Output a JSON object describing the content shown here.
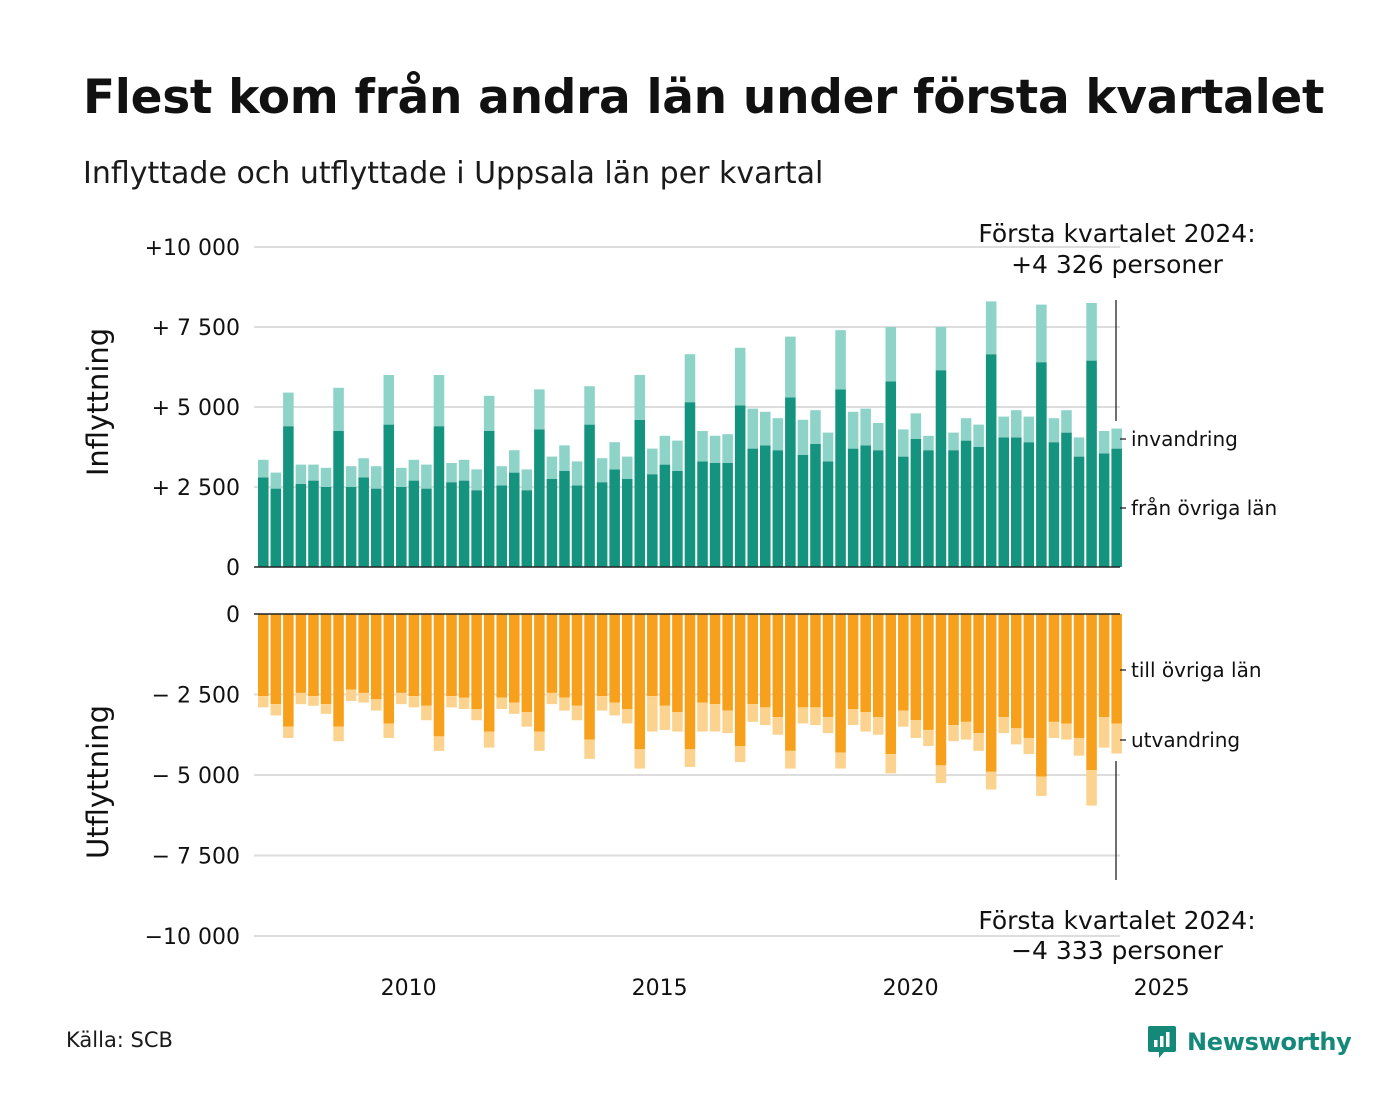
{
  "title": "Flest kom från andra län under första kvartalet",
  "subtitle": "Inflyttade och utflyttade i Uppsala län per kvartal",
  "source": "Källa: SCB",
  "brand": "Newsworthy",
  "annotation_top": [
    "Första kvartalet 2024:",
    "+4 326 personer"
  ],
  "annotation_bottom": [
    "Första kvartalet 2024:",
    "−4 333 personer"
  ],
  "colors": {
    "fran_ovriga_lan": "#14937f",
    "invandring": "#8dd3c8",
    "till_ovriga_lan": "#f6a01b",
    "utvandring": "#fcd38e",
    "grid": "#dddddd",
    "axis": "#222222",
    "brand": "#14897a"
  },
  "chart_data": [
    {
      "type": "bar",
      "stacked": true,
      "panel": "top",
      "ylabel": "Inflyttning",
      "ylim": [
        0,
        10000
      ],
      "yticks": [
        {
          "value": 10000,
          "label": "+10 000"
        },
        {
          "value": 7500,
          "label": "+ 7 500"
        },
        {
          "value": 5000,
          "label": "+ 5 000"
        },
        {
          "value": 2500,
          "label": "+ 2 500"
        },
        {
          "value": 0,
          "label": "0"
        }
      ],
      "x_start": "2007 Q1",
      "x_end": "2024 Q1",
      "xticks": [
        "2010",
        "2015",
        "2020",
        "2025"
      ],
      "grid": true,
      "legend_placement": "right (inline labels)",
      "series": [
        {
          "name": "från övriga län",
          "color_key": "fran_ovriga_lan",
          "values": [
            2800,
            2450,
            4400,
            2600,
            2700,
            2500,
            4250,
            2500,
            2800,
            2450,
            4450,
            2500,
            2700,
            2450,
            4400,
            2650,
            2700,
            2400,
            4250,
            2550,
            2950,
            2400,
            4300,
            2750,
            3000,
            2550,
            4450,
            2650,
            3050,
            2750,
            4600,
            2900,
            3200,
            3000,
            5150,
            3300,
            3250,
            3250,
            5050,
            3700,
            3800,
            3650,
            5300,
            3500,
            3850,
            3300,
            5550,
            3700,
            3800,
            3650,
            5800,
            3450,
            4000,
            3650,
            6150,
            3650,
            3950,
            3750,
            6650,
            4050,
            4050,
            3900,
            6400,
            3900,
            4200,
            3450,
            6450,
            3550,
            3700
          ]
        },
        {
          "name": "invandring",
          "color_key": "invandring",
          "values": [
            550,
            500,
            1050,
            600,
            500,
            600,
            1350,
            650,
            600,
            700,
            1550,
            600,
            650,
            750,
            1600,
            600,
            650,
            650,
            1100,
            600,
            700,
            650,
            1250,
            700,
            800,
            750,
            1200,
            750,
            850,
            700,
            1400,
            800,
            900,
            950,
            1500,
            950,
            850,
            900,
            1800,
            1250,
            1050,
            1000,
            1900,
            1100,
            1050,
            900,
            1850,
            1150,
            1150,
            850,
            1700,
            850,
            800,
            450,
            1350,
            550,
            700,
            700,
            1650,
            650,
            850,
            800,
            1800,
            750,
            700,
            600,
            1800,
            700,
            626
          ]
        }
      ]
    },
    {
      "type": "bar",
      "stacked": true,
      "panel": "bottom",
      "ylabel": "Utflyttning",
      "ylim": [
        -10000,
        0
      ],
      "yticks": [
        {
          "value": 0,
          "label": "0"
        },
        {
          "value": -2500,
          "label": "− 2 500"
        },
        {
          "value": -5000,
          "label": "− 5 000"
        },
        {
          "value": -7500,
          "label": "− 7 500"
        },
        {
          "value": -10000,
          "label": "−10 000"
        }
      ],
      "x_start": "2007 Q1",
      "x_end": "2024 Q1",
      "xticks": [
        "2010",
        "2015",
        "2020",
        "2025"
      ],
      "grid": true,
      "legend_placement": "right (inline labels)",
      "series": [
        {
          "name": "till övriga län",
          "color_key": "till_ovriga_lan",
          "values": [
            -2550,
            -2800,
            -3500,
            -2450,
            -2550,
            -2800,
            -3500,
            -2350,
            -2450,
            -2650,
            -3400,
            -2450,
            -2550,
            -2850,
            -3800,
            -2550,
            -2600,
            -2950,
            -3650,
            -2600,
            -2750,
            -3050,
            -3650,
            -2450,
            -2600,
            -2850,
            -3900,
            -2550,
            -2750,
            -2950,
            -4200,
            -2550,
            -2850,
            -3050,
            -4200,
            -2750,
            -2800,
            -3000,
            -4100,
            -2800,
            -2900,
            -3200,
            -4250,
            -2900,
            -2900,
            -3200,
            -4300,
            -2950,
            -3050,
            -3200,
            -4350,
            -3000,
            -3300,
            -3600,
            -4700,
            -3450,
            -3350,
            -3700,
            -4900,
            -3200,
            -3550,
            -3850,
            -5050,
            -3350,
            -3400,
            -3850,
            -4850,
            -3200,
            -3400
          ]
        },
        {
          "name": "utvandring",
          "color_key": "utvandring",
          "values": [
            -350,
            -350,
            -350,
            -350,
            -300,
            -300,
            -450,
            -350,
            -300,
            -350,
            -450,
            -350,
            -350,
            -450,
            -450,
            -350,
            -350,
            -350,
            -500,
            -350,
            -350,
            -450,
            -600,
            -350,
            -400,
            -450,
            -600,
            -450,
            -400,
            -450,
            -600,
            -1100,
            -750,
            -600,
            -550,
            -900,
            -850,
            -700,
            -500,
            -550,
            -550,
            -550,
            -550,
            -500,
            -550,
            -500,
            -500,
            -500,
            -600,
            -550,
            -600,
            -500,
            -550,
            -500,
            -550,
            -500,
            -550,
            -550,
            -550,
            -500,
            -500,
            -500,
            -600,
            -500,
            -500,
            -550,
            -1100,
            -950,
            -933
          ]
        }
      ]
    }
  ],
  "legend": {
    "invandring": "invandring",
    "fran_ovriga_lan": "från övriga län",
    "till_ovriga_lan": "till övriga län",
    "utvandring": "utvandring"
  }
}
